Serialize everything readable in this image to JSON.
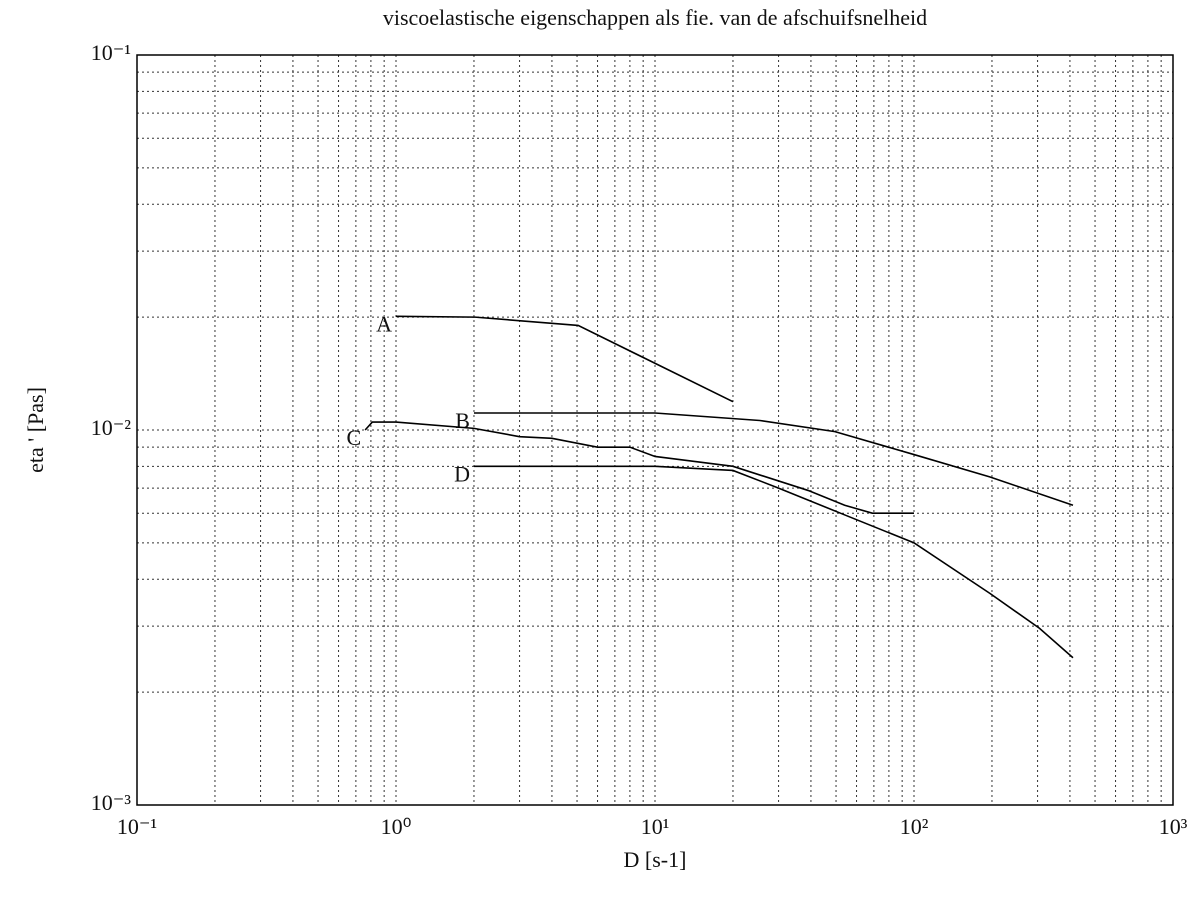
{
  "chart_data": {
    "type": "line",
    "title": "viscoelastische eigenschappen als fie. van de afschuifsnelheid",
    "xlabel": "D  [s-1]",
    "ylabel": "eta ' [Pas]",
    "xscale": "log",
    "yscale": "log",
    "grid": true,
    "xlim": [
      0.1,
      1000
    ],
    "ylim": [
      0.001,
      0.1
    ],
    "xticks": [
      {
        "value": 0.1,
        "label": "10⁻¹"
      },
      {
        "value": 1,
        "label": "10⁰"
      },
      {
        "value": 10,
        "label": "10¹"
      },
      {
        "value": 100,
        "label": "10²"
      },
      {
        "value": 1000,
        "label": "10³"
      }
    ],
    "yticks": [
      {
        "value": 0.001,
        "label": "10⁻³"
      },
      {
        "value": 0.01,
        "label": "10⁻²"
      },
      {
        "value": 0.1,
        "label": "10⁻¹"
      }
    ],
    "xminorticks": [
      0.2,
      0.3,
      0.4,
      0.5,
      0.6,
      0.7,
      0.8,
      0.9,
      2,
      3,
      4,
      5,
      6,
      7,
      8,
      9,
      20,
      30,
      40,
      50,
      60,
      70,
      80,
      90,
      200,
      300,
      400,
      500,
      600,
      700,
      800,
      900
    ],
    "yminorticks": [
      0.002,
      0.003,
      0.004,
      0.005,
      0.006,
      0.007,
      0.008,
      0.009,
      0.02,
      0.03,
      0.04,
      0.05,
      0.06,
      0.07,
      0.08,
      0.09
    ],
    "series": [
      {
        "name": "A",
        "color": "#000000",
        "x": [
          1,
          2.02,
          5.05,
          20
        ],
        "values": [
          0.0201,
          0.02,
          0.019,
          0.0119
        ]
      },
      {
        "name": "B",
        "color": "#000000",
        "x": [
          2,
          10,
          25.4,
          49.5,
          100,
          196,
          411
        ],
        "values": [
          0.0111,
          0.0111,
          0.0106,
          0.0099,
          0.0086,
          0.0075,
          0.0063
        ]
      },
      {
        "name": "C",
        "color": "#000000",
        "x": [
          0.76,
          0.81,
          1,
          2,
          3,
          4,
          6,
          8,
          10,
          20,
          39,
          54,
          69,
          100
        ],
        "values": [
          0.01,
          0.0105,
          0.0105,
          0.0101,
          0.0096,
          0.0095,
          0.009,
          0.009,
          0.0085,
          0.008,
          0.0069,
          0.0063,
          0.006,
          0.006
        ]
      },
      {
        "name": "D",
        "color": "#000000",
        "x": [
          2,
          10,
          20,
          30,
          52,
          100,
          196,
          305,
          411
        ],
        "values": [
          0.008,
          0.008,
          0.0078,
          0.007,
          0.006,
          0.005,
          0.00367,
          0.00296,
          0.00247
        ]
      }
    ]
  }
}
